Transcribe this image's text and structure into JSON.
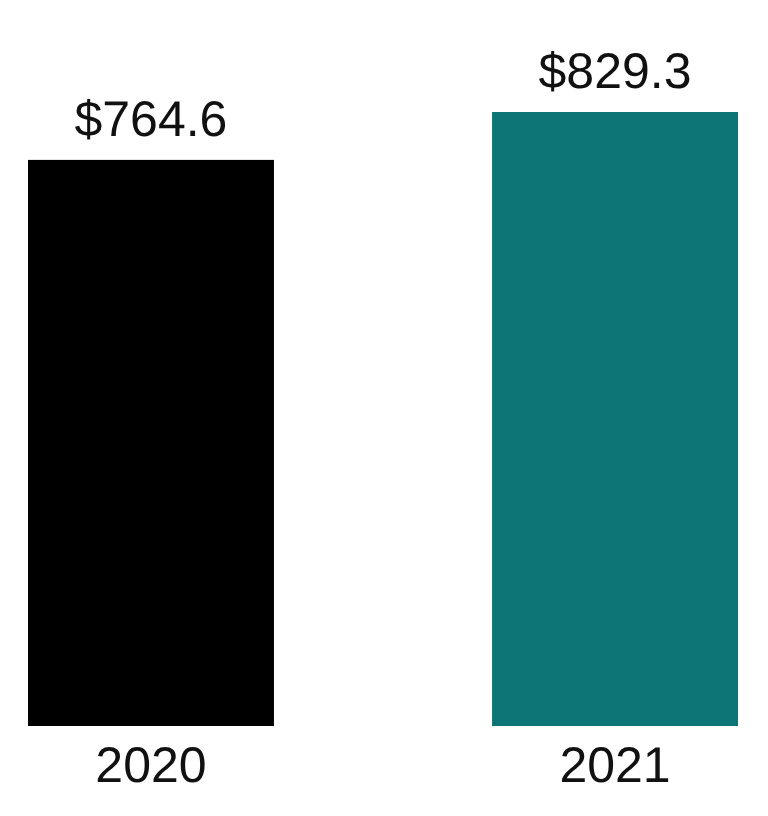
{
  "chart_data": {
    "type": "bar",
    "categories": [
      "2020",
      "2021"
    ],
    "values": [
      764.6,
      829.3
    ],
    "colors": [
      "#000000",
      "#0e7577"
    ],
    "value_labels": [
      "$764.6",
      "$829.3"
    ]
  }
}
